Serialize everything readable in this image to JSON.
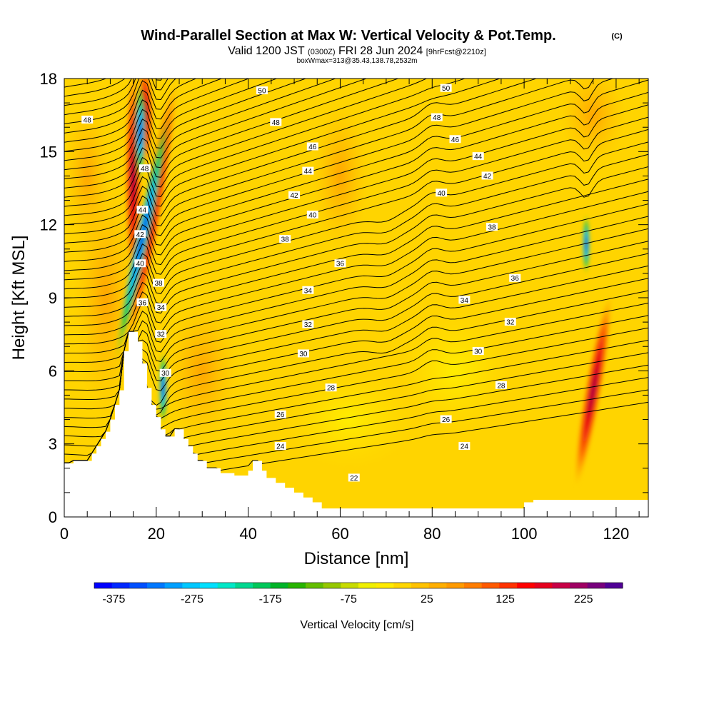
{
  "chart_data": {
    "type": "heatmap",
    "title": "Wind-Parallel Section at Max W: Vertical Velocity & Pot.Temp.",
    "title_mark": "(C)",
    "subtitle_main": "Valid 1200 JST",
    "subtitle_utc": "(0300Z)",
    "subtitle_date": "FRI 28 Jun 2024",
    "subtitle_fcst": "[9hrFcst@2210z]",
    "box_info": "boxWmax=313@35.43,138.78,2532m",
    "xlabel": "Distance [nm]",
    "ylabel": "Height [Kft MSL]",
    "xlim": [
      0,
      127
    ],
    "ylim": [
      0,
      18
    ],
    "xticks": [
      0,
      20,
      40,
      60,
      80,
      100,
      120
    ],
    "yticks": [
      0,
      3,
      6,
      9,
      12,
      15,
      18
    ],
    "colorbar": {
      "label": "Vertical Velocity [cm/s]",
      "tick_labels": [
        "-375",
        "-275",
        "-175",
        "-75",
        "25",
        "125",
        "225"
      ],
      "tick_values": [
        -375,
        -275,
        -175,
        -75,
        25,
        125,
        225
      ],
      "range": [
        -400,
        275
      ],
      "colors": [
        "#0000ff",
        "#0028ff",
        "#0050ff",
        "#0078ff",
        "#00a0ff",
        "#00c8ff",
        "#00e0ff",
        "#00e8c8",
        "#00d890",
        "#00c85a",
        "#00b428",
        "#28b400",
        "#64be00",
        "#96c800",
        "#c8dc00",
        "#f0f000",
        "#ffeb00",
        "#ffd700",
        "#ffc300",
        "#ffaf00",
        "#ff9b00",
        "#ff7d00",
        "#ff5a00",
        "#ff3200",
        "#ff0000",
        "#e6001e",
        "#c80046",
        "#a00064",
        "#78007d",
        "#500096"
      ]
    },
    "terrain": [
      [
        0,
        2.2
      ],
      [
        2,
        2.2
      ],
      [
        2,
        2.3
      ],
      [
        6,
        2.3
      ],
      [
        6,
        2.6
      ],
      [
        7,
        2.6
      ],
      [
        7,
        2.9
      ],
      [
        8,
        2.9
      ],
      [
        8,
        3.2
      ],
      [
        9,
        3.2
      ],
      [
        9,
        3.5
      ],
      [
        10,
        3.5
      ],
      [
        10,
        4.0
      ],
      [
        11,
        4.0
      ],
      [
        11,
        4.6
      ],
      [
        12,
        4.6
      ],
      [
        12,
        5.2
      ],
      [
        13,
        5.2
      ],
      [
        13,
        6.8
      ],
      [
        14,
        6.8
      ],
      [
        14,
        7.6
      ],
      [
        16,
        7.6
      ],
      [
        16,
        7.2
      ],
      [
        17,
        7.2
      ],
      [
        17,
        6.3
      ],
      [
        18,
        6.3
      ],
      [
        18,
        5.3
      ],
      [
        19,
        5.3
      ],
      [
        19,
        4.6
      ],
      [
        20,
        4.6
      ],
      [
        20,
        4.1
      ],
      [
        21,
        4.1
      ],
      [
        21,
        3.6
      ],
      [
        22,
        3.6
      ],
      [
        22,
        3.3
      ],
      [
        24,
        3.3
      ],
      [
        24,
        3.6
      ],
      [
        26,
        3.6
      ],
      [
        26,
        3.2
      ],
      [
        27,
        3.2
      ],
      [
        27,
        2.9
      ],
      [
        28,
        2.9
      ],
      [
        28,
        2.6
      ],
      [
        29,
        2.6
      ],
      [
        29,
        2.3
      ],
      [
        31,
        2.3
      ],
      [
        31,
        2.0
      ],
      [
        34,
        2.0
      ],
      [
        34,
        1.8
      ],
      [
        37,
        1.8
      ],
      [
        37,
        1.7
      ],
      [
        40,
        1.7
      ],
      [
        40,
        1.9
      ],
      [
        41,
        1.9
      ],
      [
        41,
        2.3
      ],
      [
        43,
        2.3
      ],
      [
        43,
        1.9
      ],
      [
        44,
        1.9
      ],
      [
        44,
        1.6
      ],
      [
        46,
        1.6
      ],
      [
        46,
        1.4
      ],
      [
        48,
        1.4
      ],
      [
        48,
        1.2
      ],
      [
        50,
        1.2
      ],
      [
        50,
        1.0
      ],
      [
        52,
        1.0
      ],
      [
        52,
        0.8
      ],
      [
        54,
        0.8
      ],
      [
        54,
        0.6
      ],
      [
        56,
        0.6
      ],
      [
        56,
        0.35
      ],
      [
        100,
        0.35
      ],
      [
        100,
        0.6
      ],
      [
        102,
        0.6
      ],
      [
        102,
        0.7
      ],
      [
        127,
        0.7
      ]
    ],
    "theta_levels": [
      22,
      24,
      26,
      28,
      30,
      32,
      34,
      36,
      38,
      40,
      42,
      44,
      46,
      48,
      50
    ],
    "isentrope_count": 48,
    "contour_labels": [
      {
        "x": 5,
        "y": 16.3,
        "t": "48"
      },
      {
        "x": 43,
        "y": 17.5,
        "t": "50"
      },
      {
        "x": 83,
        "y": 17.6,
        "t": "50"
      },
      {
        "x": 46,
        "y": 16.2,
        "t": "48"
      },
      {
        "x": 81,
        "y": 16.4,
        "t": "48"
      },
      {
        "x": 54,
        "y": 15.2,
        "t": "46"
      },
      {
        "x": 85,
        "y": 15.5,
        "t": "46"
      },
      {
        "x": 53,
        "y": 14.2,
        "t": "44"
      },
      {
        "x": 90,
        "y": 14.8,
        "t": "44"
      },
      {
        "x": 50,
        "y": 13.2,
        "t": "42"
      },
      {
        "x": 92,
        "y": 14.0,
        "t": "42"
      },
      {
        "x": 54,
        "y": 12.4,
        "t": "40"
      },
      {
        "x": 82,
        "y": 13.3,
        "t": "40"
      },
      {
        "x": 48,
        "y": 11.4,
        "t": "38"
      },
      {
        "x": 93,
        "y": 11.9,
        "t": "38"
      },
      {
        "x": 60,
        "y": 10.4,
        "t": "36"
      },
      {
        "x": 98,
        "y": 9.8,
        "t": "36"
      },
      {
        "x": 53,
        "y": 9.3,
        "t": "34"
      },
      {
        "x": 87,
        "y": 8.9,
        "t": "34"
      },
      {
        "x": 53,
        "y": 7.9,
        "t": "32"
      },
      {
        "x": 97,
        "y": 8.0,
        "t": "32"
      },
      {
        "x": 52,
        "y": 6.7,
        "t": "30"
      },
      {
        "x": 90,
        "y": 6.8,
        "t": "30"
      },
      {
        "x": 58,
        "y": 5.3,
        "t": "28"
      },
      {
        "x": 95,
        "y": 5.4,
        "t": "28"
      },
      {
        "x": 47,
        "y": 4.2,
        "t": "26"
      },
      {
        "x": 83,
        "y": 4.0,
        "t": "26"
      },
      {
        "x": 47,
        "y": 2.9,
        "t": "24"
      },
      {
        "x": 87,
        "y": 2.9,
        "t": "24"
      },
      {
        "x": 63,
        "y": 1.6,
        "t": "22"
      },
      {
        "x": 17.5,
        "y": 14.3,
        "t": "48"
      },
      {
        "x": 17,
        "y": 12.6,
        "t": "44"
      },
      {
        "x": 16.5,
        "y": 11.6,
        "t": "42"
      },
      {
        "x": 16.5,
        "y": 10.4,
        "t": "40"
      },
      {
        "x": 20.5,
        "y": 9.6,
        "t": "38"
      },
      {
        "x": 17,
        "y": 8.8,
        "t": "36"
      },
      {
        "x": 21,
        "y": 8.6,
        "t": "34"
      },
      {
        "x": 21,
        "y": 7.5,
        "t": "32"
      },
      {
        "x": 22,
        "y": 5.9,
        "t": "30"
      }
    ]
  }
}
